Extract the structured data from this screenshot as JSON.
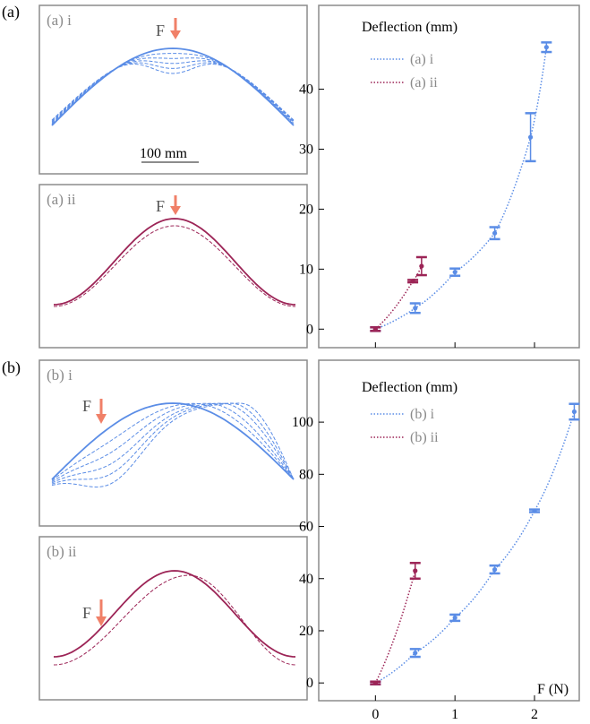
{
  "panels": {
    "a": "(a)",
    "b": "(b)"
  },
  "colors": {
    "series_i": "#5b8de6",
    "series_ii": "#9c2456",
    "force_arrow": "#f08068",
    "frame": "#8c8c8c"
  },
  "insets": {
    "a_i": {
      "label": "(a) i",
      "force": "F",
      "scale_bar": "100 mm"
    },
    "a_ii": {
      "label": "(a) ii",
      "force": "F"
    },
    "b_i": {
      "label": "(b) i",
      "force": "F"
    },
    "b_ii": {
      "label": "(b) ii",
      "force": "F"
    }
  },
  "chart_data": [
    {
      "type": "scatter",
      "ylabel": "Deflection (mm)",
      "xlabel": "",
      "xlim": [
        -0.15,
        2.45
      ],
      "ylim": [
        -1,
        48
      ],
      "xticks": [
        0,
        1,
        2
      ],
      "yticks": [
        0,
        10,
        20,
        30,
        40
      ],
      "show_xtick_labels": false,
      "legend_position": "top-left",
      "series": [
        {
          "name": "(a) i",
          "color": "#5b8de6",
          "x": [
            0,
            0.5,
            1.0,
            1.5,
            1.95,
            2.15
          ],
          "y": [
            0,
            3.5,
            9.5,
            16,
            32,
            47
          ],
          "err": [
            0.3,
            0.8,
            0.6,
            1.0,
            4.0,
            0.8
          ]
        },
        {
          "name": "(a) ii",
          "color": "#9c2456",
          "x": [
            0,
            0.47,
            0.58
          ],
          "y": [
            0,
            8,
            10.5
          ],
          "err": [
            0.3,
            0.2,
            1.5
          ]
        }
      ]
    },
    {
      "type": "scatter",
      "ylabel": "Deflection (mm)",
      "xlabel": "F (N)",
      "xlim": [
        -0.15,
        2.45
      ],
      "ylim": [
        -2,
        110
      ],
      "xticks": [
        0,
        1,
        2
      ],
      "yticks": [
        0,
        20,
        40,
        60,
        80,
        100
      ],
      "show_xtick_labels": true,
      "legend_position": "top-left",
      "series": [
        {
          "name": "(b) i",
          "color": "#5b8de6",
          "x": [
            0,
            0.5,
            1.0,
            1.5,
            2.0,
            2.5
          ],
          "y": [
            0,
            11.5,
            25,
            43.5,
            66,
            104
          ],
          "err": [
            0.5,
            1.5,
            1.2,
            1.5,
            0.5,
            3.0
          ]
        },
        {
          "name": "(b) ii",
          "color": "#9c2456",
          "x": [
            0,
            0.5
          ],
          "y": [
            0,
            43
          ],
          "err": [
            0.5,
            3.0
          ]
        }
      ]
    }
  ]
}
